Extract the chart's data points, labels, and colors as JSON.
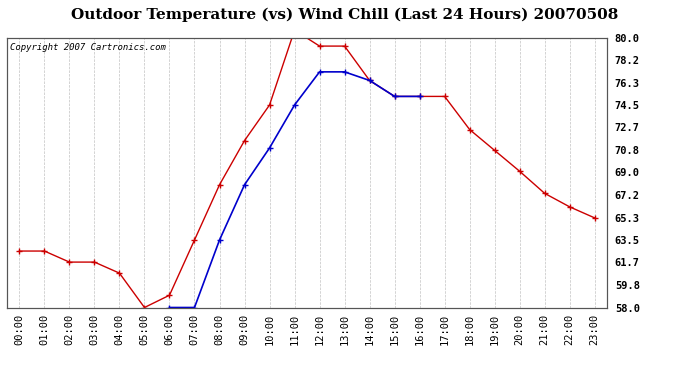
{
  "title": "Outdoor Temperature (vs) Wind Chill (Last 24 Hours) 20070508",
  "copyright_text": "Copyright 2007 Cartronics.com",
  "x_labels": [
    "00:00",
    "01:00",
    "02:00",
    "03:00",
    "04:00",
    "05:00",
    "06:00",
    "07:00",
    "08:00",
    "09:00",
    "10:00",
    "11:00",
    "12:00",
    "13:00",
    "14:00",
    "15:00",
    "16:00",
    "17:00",
    "18:00",
    "19:00",
    "20:00",
    "21:00",
    "22:00",
    "23:00"
  ],
  "temp_data": [
    62.6,
    62.6,
    61.7,
    61.7,
    60.8,
    58.0,
    59.0,
    63.5,
    68.0,
    71.6,
    74.5,
    80.6,
    79.3,
    79.3,
    76.5,
    75.2,
    75.2,
    75.2,
    72.5,
    70.8,
    69.1,
    67.3,
    66.2,
    65.3
  ],
  "windchill_data": [
    null,
    null,
    null,
    null,
    null,
    null,
    58.0,
    58.0,
    63.5,
    68.0,
    71.0,
    74.5,
    77.2,
    77.2,
    76.5,
    75.2,
    75.2,
    null,
    null,
    null,
    null,
    null,
    null,
    null
  ],
  "temp_color": "#cc0000",
  "windchill_color": "#0000cc",
  "background_color": "#ffffff",
  "plot_bg_color": "#ffffff",
  "grid_color": "#bbbbbb",
  "ylim": [
    58.0,
    80.0
  ],
  "yticks": [
    58.0,
    59.8,
    61.7,
    63.5,
    65.3,
    67.2,
    69.0,
    70.8,
    72.7,
    74.5,
    76.3,
    78.2,
    80.0
  ],
  "title_fontsize": 11,
  "label_fontsize": 7.5,
  "copyright_fontsize": 6.5
}
